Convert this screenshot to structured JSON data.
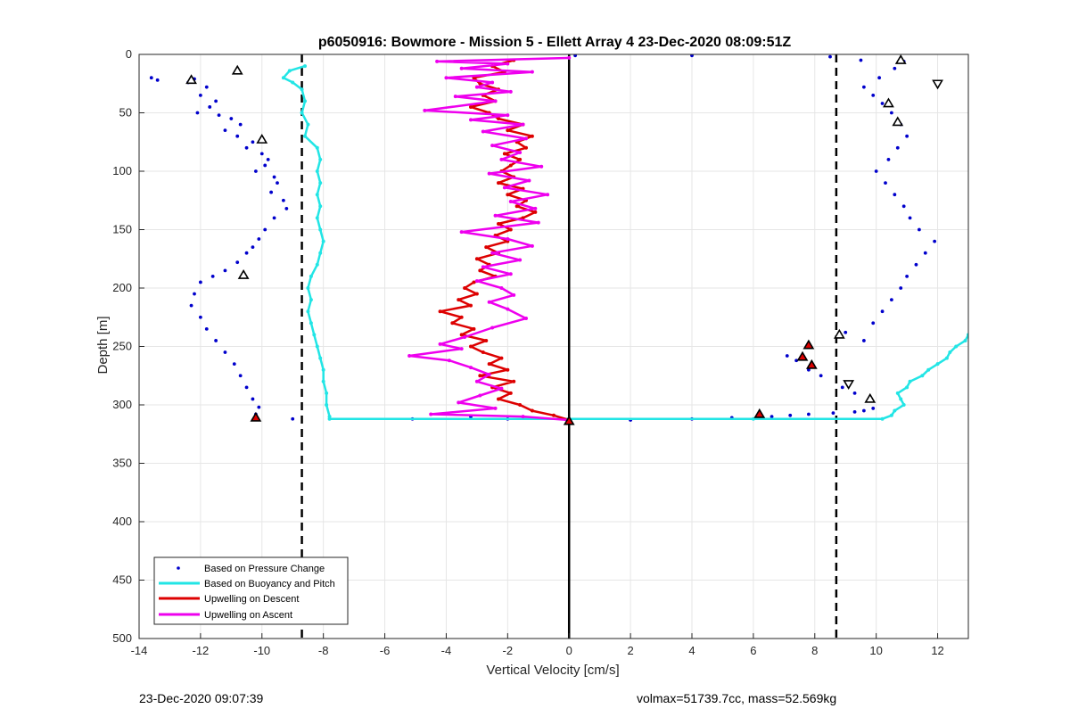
{
  "chart_data": {
    "type": "scatter",
    "title": "p6050916: Bowmore - Mission 5 - Ellett Array 4 23-Dec-2020 08:09:51Z",
    "xlabel": "Vertical Velocity [cm/s]",
    "ylabel": "Depth [m]",
    "xlim": [
      -14,
      13
    ],
    "ylim": [
      0,
      500
    ],
    "y_reversed": true,
    "grid": true,
    "xticks": [
      -14,
      -12,
      -10,
      -8,
      -6,
      -4,
      -2,
      0,
      2,
      4,
      6,
      8,
      10,
      12
    ],
    "yticks": [
      0,
      50,
      100,
      150,
      200,
      250,
      300,
      350,
      400,
      450,
      500
    ],
    "legend_position": "bottom-left",
    "series": [
      {
        "name": "Based on Pressure Change",
        "style": "dots",
        "color": "#0000cc",
        "points": [
          [
            -13.6,
            20
          ],
          [
            -13.4,
            22
          ],
          [
            -12.2,
            21
          ],
          [
            -12.4,
            24
          ],
          [
            -11.8,
            28
          ],
          [
            -12.0,
            35
          ],
          [
            -11.5,
            40
          ],
          [
            -11.7,
            45
          ],
          [
            -12.1,
            50
          ],
          [
            -11.4,
            52
          ],
          [
            -11.0,
            55
          ],
          [
            -10.7,
            60
          ],
          [
            -11.2,
            65
          ],
          [
            -10.8,
            70
          ],
          [
            -10.3,
            75
          ],
          [
            -10.5,
            80
          ],
          [
            -10.0,
            85
          ],
          [
            -9.8,
            90
          ],
          [
            -9.9,
            95
          ],
          [
            -10.2,
            100
          ],
          [
            -9.6,
            105
          ],
          [
            -9.5,
            110
          ],
          [
            -9.7,
            118
          ],
          [
            -9.3,
            125
          ],
          [
            -9.2,
            132
          ],
          [
            -9.6,
            140
          ],
          [
            -9.9,
            150
          ],
          [
            -10.1,
            158
          ],
          [
            -10.3,
            165
          ],
          [
            -10.5,
            170
          ],
          [
            -10.8,
            178
          ],
          [
            -11.2,
            185
          ],
          [
            -11.6,
            190
          ],
          [
            -12.0,
            195
          ],
          [
            -12.2,
            205
          ],
          [
            -12.3,
            215
          ],
          [
            -12.0,
            225
          ],
          [
            -11.8,
            235
          ],
          [
            -11.5,
            245
          ],
          [
            -11.2,
            255
          ],
          [
            -10.9,
            265
          ],
          [
            -10.7,
            275
          ],
          [
            -10.5,
            285
          ],
          [
            -10.3,
            295
          ],
          [
            -10.1,
            302
          ],
          [
            -10.2,
            308
          ],
          [
            -9.0,
            312
          ],
          [
            -5.1,
            312
          ],
          [
            -3.2,
            310
          ],
          [
            -2.0,
            312
          ],
          [
            2.0,
            313
          ],
          [
            4.0,
            312
          ],
          [
            5.3,
            311
          ],
          [
            6.6,
            310
          ],
          [
            7.2,
            309
          ],
          [
            7.8,
            308
          ],
          [
            8.6,
            307
          ],
          [
            9.3,
            306
          ],
          [
            9.6,
            305
          ],
          [
            9.9,
            303
          ],
          [
            7.1,
            258
          ],
          [
            7.4,
            262
          ],
          [
            7.8,
            270
          ],
          [
            8.2,
            275
          ],
          [
            8.9,
            285
          ],
          [
            9.3,
            290
          ],
          [
            9.6,
            245
          ],
          [
            9.0,
            238
          ],
          [
            9.9,
            230
          ],
          [
            10.2,
            220
          ],
          [
            10.5,
            210
          ],
          [
            10.8,
            200
          ],
          [
            11.0,
            190
          ],
          [
            11.3,
            180
          ],
          [
            11.6,
            170
          ],
          [
            11.9,
            160
          ],
          [
            11.4,
            150
          ],
          [
            11.1,
            140
          ],
          [
            10.9,
            130
          ],
          [
            10.6,
            120
          ],
          [
            10.3,
            110
          ],
          [
            10.0,
            100
          ],
          [
            10.4,
            90
          ],
          [
            10.7,
            80
          ],
          [
            11.0,
            70
          ],
          [
            10.8,
            60
          ],
          [
            10.5,
            50
          ],
          [
            10.2,
            42
          ],
          [
            9.9,
            35
          ],
          [
            9.6,
            28
          ],
          [
            10.1,
            20
          ],
          [
            10.6,
            12
          ],
          [
            10.9,
            6
          ],
          [
            9.5,
            5
          ],
          [
            8.5,
            2
          ],
          [
            4.0,
            1
          ],
          [
            0.2,
            1
          ]
        ]
      },
      {
        "name": "Based on Buoyancy and Pitch",
        "style": "line",
        "color": "#22e5e5",
        "points": [
          [
            -8.6,
            10
          ],
          [
            -9.1,
            14
          ],
          [
            -9.3,
            20
          ],
          [
            -9.0,
            24
          ],
          [
            -8.7,
            30
          ],
          [
            -8.6,
            40
          ],
          [
            -8.7,
            50
          ],
          [
            -8.5,
            60
          ],
          [
            -8.6,
            70
          ],
          [
            -8.2,
            80
          ],
          [
            -8.1,
            90
          ],
          [
            -8.2,
            100
          ],
          [
            -8.1,
            110
          ],
          [
            -8.2,
            120
          ],
          [
            -8.1,
            130
          ],
          [
            -8.2,
            140
          ],
          [
            -8.1,
            150
          ],
          [
            -8.0,
            160
          ],
          [
            -8.1,
            170
          ],
          [
            -8.2,
            180
          ],
          [
            -8.4,
            190
          ],
          [
            -8.5,
            200
          ],
          [
            -8.4,
            210
          ],
          [
            -8.5,
            220
          ],
          [
            -8.4,
            230
          ],
          [
            -8.3,
            240
          ],
          [
            -8.2,
            250
          ],
          [
            -8.1,
            260
          ],
          [
            -8.0,
            270
          ],
          [
            -8.0,
            280
          ],
          [
            -7.9,
            290
          ],
          [
            -7.9,
            300
          ],
          [
            -7.8,
            310
          ],
          [
            -7.8,
            312
          ],
          [
            0.0,
            312
          ],
          [
            6.0,
            312
          ],
          [
            10.2,
            312
          ],
          [
            10.5,
            309
          ],
          [
            10.6,
            305
          ],
          [
            10.9,
            300
          ],
          [
            10.8,
            295
          ],
          [
            10.7,
            290
          ],
          [
            11.0,
            285
          ],
          [
            11.1,
            280
          ],
          [
            11.5,
            275
          ],
          [
            11.7,
            270
          ],
          [
            12.0,
            265
          ],
          [
            12.3,
            260
          ],
          [
            12.4,
            255
          ],
          [
            12.6,
            250
          ],
          [
            12.9,
            245
          ],
          [
            13.0,
            240
          ]
        ]
      },
      {
        "name": "Upwelling on Descent",
        "style": "line",
        "color": "#dd0000",
        "points": [
          [
            -1.8,
            5
          ],
          [
            -2.5,
            10
          ],
          [
            -2.1,
            15
          ],
          [
            -3.1,
            20
          ],
          [
            -2.9,
            25
          ],
          [
            -2.3,
            30
          ],
          [
            -2.8,
            35
          ],
          [
            -2.4,
            40
          ],
          [
            -3.2,
            45
          ],
          [
            -2.6,
            50
          ],
          [
            -2.3,
            55
          ],
          [
            -1.5,
            60
          ],
          [
            -2.0,
            65
          ],
          [
            -1.2,
            70
          ],
          [
            -1.7,
            75
          ],
          [
            -1.4,
            80
          ],
          [
            -2.1,
            85
          ],
          [
            -1.6,
            90
          ],
          [
            -1.9,
            95
          ],
          [
            -2.2,
            100
          ],
          [
            -1.8,
            105
          ],
          [
            -2.3,
            110
          ],
          [
            -1.5,
            115
          ],
          [
            -2.0,
            120
          ],
          [
            -1.4,
            125
          ],
          [
            -1.7,
            130
          ],
          [
            -1.1,
            135
          ],
          [
            -1.5,
            140
          ],
          [
            -2.3,
            145
          ],
          [
            -1.9,
            150
          ],
          [
            -2.4,
            155
          ],
          [
            -2.0,
            160
          ],
          [
            -2.7,
            165
          ],
          [
            -2.3,
            170
          ],
          [
            -3.0,
            175
          ],
          [
            -2.6,
            180
          ],
          [
            -2.9,
            185
          ],
          [
            -2.4,
            190
          ],
          [
            -3.1,
            195
          ],
          [
            -3.4,
            200
          ],
          [
            -3.0,
            205
          ],
          [
            -3.6,
            210
          ],
          [
            -3.2,
            215
          ],
          [
            -4.2,
            220
          ],
          [
            -3.5,
            225
          ],
          [
            -3.8,
            230
          ],
          [
            -3.1,
            235
          ],
          [
            -3.5,
            240
          ],
          [
            -2.7,
            245
          ],
          [
            -3.2,
            250
          ],
          [
            -2.8,
            255
          ],
          [
            -2.2,
            260
          ],
          [
            -2.6,
            265
          ],
          [
            -2.0,
            270
          ],
          [
            -2.9,
            275
          ],
          [
            -1.8,
            280
          ],
          [
            -2.5,
            285
          ],
          [
            -1.9,
            290
          ],
          [
            -2.3,
            295
          ],
          [
            -1.6,
            300
          ],
          [
            -1.2,
            305
          ],
          [
            -0.5,
            309
          ],
          [
            0.0,
            313
          ]
        ]
      },
      {
        "name": "Upwelling on Ascent",
        "style": "line",
        "color": "#ee00ee",
        "points": [
          [
            0.0,
            3
          ],
          [
            -4.3,
            6
          ],
          [
            -2.0,
            8
          ],
          [
            -3.5,
            12
          ],
          [
            -1.2,
            15
          ],
          [
            -4.0,
            20
          ],
          [
            -2.5,
            24
          ],
          [
            -3.0,
            28
          ],
          [
            -1.9,
            32
          ],
          [
            -3.7,
            36
          ],
          [
            -2.4,
            40
          ],
          [
            -4.7,
            48
          ],
          [
            -2.0,
            52
          ],
          [
            -3.2,
            56
          ],
          [
            -1.5,
            60
          ],
          [
            -2.8,
            66
          ],
          [
            -1.4,
            72
          ],
          [
            -2.5,
            78
          ],
          [
            -1.6,
            84
          ],
          [
            -2.2,
            90
          ],
          [
            -0.9,
            96
          ],
          [
            -2.6,
            102
          ],
          [
            -1.3,
            108
          ],
          [
            -2.1,
            114
          ],
          [
            -0.7,
            120
          ],
          [
            -1.9,
            126
          ],
          [
            -1.1,
            132
          ],
          [
            -2.4,
            138
          ],
          [
            -1.0,
            144
          ],
          [
            -3.5,
            152
          ],
          [
            -2.0,
            158
          ],
          [
            -1.2,
            164
          ],
          [
            -2.5,
            170
          ],
          [
            -1.6,
            176
          ],
          [
            -2.8,
            182
          ],
          [
            -1.9,
            188
          ],
          [
            -3.0,
            194
          ],
          [
            -2.2,
            200
          ],
          [
            -1.8,
            206
          ],
          [
            -2.6,
            212
          ],
          [
            -2.0,
            218
          ],
          [
            -1.4,
            226
          ],
          [
            -2.5,
            234
          ],
          [
            -3.4,
            242
          ],
          [
            -4.2,
            248
          ],
          [
            -3.5,
            252
          ],
          [
            -5.2,
            258
          ],
          [
            -3.9,
            262
          ],
          [
            -3.2,
            268
          ],
          [
            -2.6,
            274
          ],
          [
            -3.0,
            280
          ],
          [
            -2.2,
            286
          ],
          [
            -2.9,
            292
          ],
          [
            -3.6,
            298
          ],
          [
            -2.4,
            303
          ],
          [
            -4.5,
            308
          ],
          [
            -1.5,
            310
          ],
          [
            0.0,
            313
          ]
        ]
      }
    ],
    "markers": [
      {
        "shape": "triangle-up",
        "fill": "none",
        "points": [
          [
            -10.8,
            14
          ],
          [
            -12.3,
            22
          ],
          [
            -10.0,
            73
          ],
          [
            -10.6,
            189
          ],
          [
            10.8,
            5
          ],
          [
            10.4,
            42
          ],
          [
            10.7,
            58
          ],
          [
            8.8,
            240
          ],
          [
            9.8,
            295
          ]
        ]
      },
      {
        "shape": "triangle-down",
        "fill": "none",
        "points": [
          [
            12.0,
            25
          ],
          [
            9.1,
            282
          ]
        ]
      },
      {
        "shape": "triangle-up",
        "fill": "#dd0000",
        "points": [
          [
            -10.2,
            311
          ],
          [
            7.8,
            249
          ],
          [
            7.6,
            259
          ],
          [
            7.9,
            266
          ],
          [
            6.2,
            308
          ],
          [
            0.0,
            314
          ]
        ]
      }
    ],
    "reference_lines": [
      {
        "x": 0,
        "style": "solid"
      },
      {
        "x": -8.7,
        "style": "dashed"
      },
      {
        "x": 8.7,
        "style": "dashed"
      }
    ]
  },
  "footer": {
    "left": "23-Dec-2020 09:07:39",
    "right": "volmax=51739.7cc, mass=52.569kg"
  }
}
